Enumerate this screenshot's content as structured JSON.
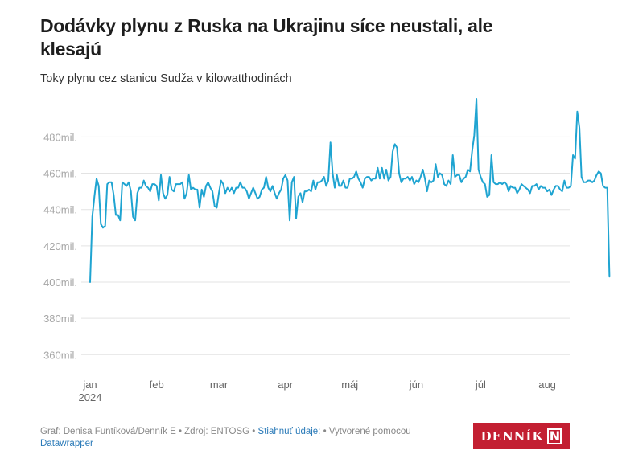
{
  "header": {
    "title": "Dodávky plynu z Ruska na Ukrajinu síce neustali, ale klesajú",
    "subtitle": "Toky plynu cez stanicu Sudža v kilowatthodinách"
  },
  "footer": {
    "credit": "Graf: Denisa Funtíková/Denník E • Zdroj: ENTOSG • ",
    "download_link": "Stiahnuť údaje:",
    "made_with": " • Vytvorené pomocou ",
    "datawrapper_link": "Datawrapper"
  },
  "logo": {
    "text": "DENNÍK",
    "mark": "N",
    "color": "#c31f32"
  },
  "colors": {
    "line": "#1fa4d1",
    "grid": "#e3e3e3",
    "ytick": "#a6a6a6",
    "xtick": "#666666"
  },
  "chart_data": {
    "type": "line",
    "title": "Dodávky plynu z Ruska na Ukrajinu síce neustali, ale klesajú",
    "subtitle": "Toky plynu cez stanicu Sudža v kilowatthodinách",
    "xlabel": "",
    "ylabel": "",
    "ylim": [
      360,
      490
    ],
    "y_unit": "mil. kWh",
    "yticks": [
      360,
      380,
      400,
      420,
      440,
      460,
      480
    ],
    "ytick_labels": [
      "360mil.",
      "380mil.",
      "400mil.",
      "420mil.",
      "440mil.",
      "460mil.",
      "480mil."
    ],
    "xtick_labels": [
      {
        "label": "jan",
        "sub": "2024",
        "day": 0
      },
      {
        "label": "feb",
        "sub": "",
        "day": 31
      },
      {
        "label": "mar",
        "sub": "",
        "day": 60
      },
      {
        "label": "apr",
        "sub": "",
        "day": 91
      },
      {
        "label": "máj",
        "sub": "",
        "day": 121
      },
      {
        "label": "jún",
        "sub": "",
        "day": 152
      },
      {
        "label": "júl",
        "sub": "",
        "day": 182
      },
      {
        "label": "aug",
        "sub": "",
        "day": 213
      }
    ],
    "grid": true,
    "legend": "none",
    "x_start": "2024-01-01",
    "x_step": "1 day",
    "series": [
      {
        "name": "Toky plynu cez Sudžu",
        "values": [
          400,
          436,
          447,
          457,
          453,
          432,
          430,
          431,
          454,
          455,
          455,
          448,
          437,
          437,
          434,
          455,
          454,
          453,
          455,
          450,
          436,
          434,
          449,
          452,
          452,
          456,
          453,
          452,
          450,
          454,
          454,
          453,
          445,
          459,
          449,
          446,
          448,
          458,
          451,
          450,
          454,
          454,
          454,
          455,
          446,
          449,
          459,
          451,
          452,
          451,
          451,
          441,
          451,
          447,
          453,
          455,
          452,
          450,
          442,
          441,
          449,
          456,
          454,
          449,
          452,
          450,
          452,
          449,
          452,
          452,
          455,
          452,
          452,
          450,
          446,
          449,
          452,
          449,
          446,
          447,
          451,
          452,
          458,
          452,
          450,
          453,
          449,
          446,
          449,
          451,
          457,
          459,
          456,
          434,
          455,
          458,
          435,
          447,
          449,
          444,
          450,
          450,
          451,
          450,
          456,
          451,
          455,
          455,
          456,
          458,
          453,
          456,
          477,
          460,
          452,
          459,
          453,
          453,
          456,
          452,
          452,
          457,
          457,
          458,
          461,
          457,
          455,
          452,
          457,
          458,
          458,
          456,
          457,
          457,
          463,
          457,
          463,
          457,
          462,
          456,
          458,
          472,
          476,
          474,
          460,
          455,
          457,
          457,
          458,
          456,
          458,
          454,
          456,
          455,
          458,
          462,
          457,
          450,
          456,
          455,
          456,
          465,
          458,
          460,
          459,
          454,
          453,
          456,
          454,
          470,
          458,
          459,
          459,
          455,
          457,
          458,
          462,
          461,
          472,
          481,
          501,
          462,
          458,
          455,
          454,
          447,
          448,
          470,
          455,
          454,
          454,
          455,
          454,
          455,
          454,
          450,
          453,
          452,
          452,
          449,
          451,
          454,
          453,
          452,
          451,
          449,
          453,
          453,
          454,
          451,
          453,
          452,
          452,
          450,
          451,
          448,
          451,
          453,
          453,
          451,
          450,
          456,
          452,
          452,
          453,
          470,
          468,
          494,
          485,
          458,
          455,
          455,
          456,
          456,
          455,
          456,
          459,
          461,
          460,
          453,
          452,
          452,
          403
        ]
      }
    ]
  }
}
